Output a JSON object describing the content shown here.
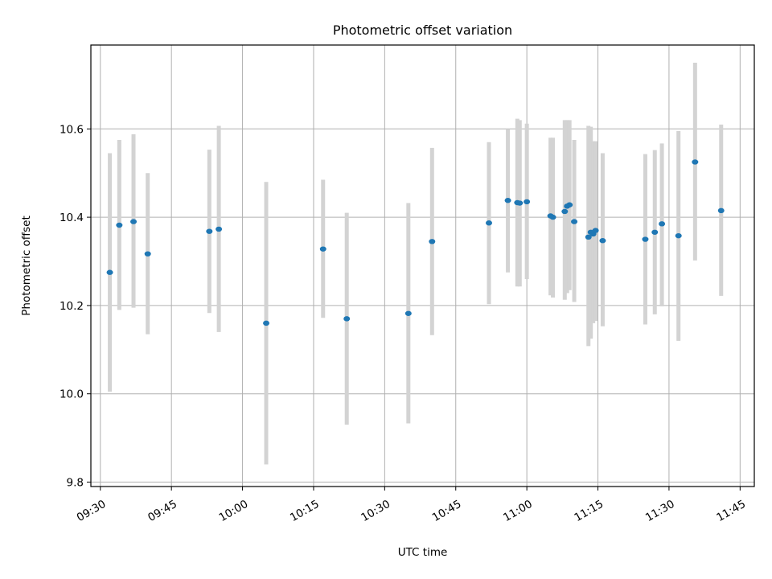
{
  "chart_data": {
    "type": "scatter",
    "title": "Photometric offset variation",
    "xlabel": "UTC time",
    "ylabel": "Photometric offset",
    "x_is_time": true,
    "xlim": [
      "09:28",
      "11:48"
    ],
    "ylim": [
      9.79,
      10.79
    ],
    "xticks": [
      "09:30",
      "09:45",
      "10:00",
      "10:15",
      "10:30",
      "10:45",
      "11:00",
      "11:15",
      "11:30",
      "11:45"
    ],
    "yticks": [
      9.8,
      10.0,
      10.2,
      10.4,
      10.6
    ],
    "ytick_labels": [
      "9.8",
      "10.0",
      "10.2",
      "10.4",
      "10.6"
    ],
    "grid": true,
    "colors": {
      "point": "#1f77b4",
      "errorbar": "#d3d3d3",
      "grid": "#b0b0b0"
    },
    "series": [
      {
        "points": [
          {
            "x": "09:32",
            "y": 10.275,
            "err_low": 10.005,
            "err_high": 10.545
          },
          {
            "x": "09:34",
            "y": 10.382,
            "err_low": 10.19,
            "err_high": 10.575
          },
          {
            "x": "09:37",
            "y": 10.39,
            "err_low": 10.195,
            "err_high": 10.588
          },
          {
            "x": "09:40",
            "y": 10.317,
            "err_low": 10.135,
            "err_high": 10.5
          },
          {
            "x": "09:53",
            "y": 10.368,
            "err_low": 10.183,
            "err_high": 10.553
          },
          {
            "x": "09:55",
            "y": 10.373,
            "err_low": 10.14,
            "err_high": 10.607
          },
          {
            "x": "10:05",
            "y": 10.16,
            "err_low": 9.84,
            "err_high": 10.48
          },
          {
            "x": "10:17",
            "y": 10.328,
            "err_low": 10.172,
            "err_high": 10.485
          },
          {
            "x": "10:22",
            "y": 10.17,
            "err_low": 9.93,
            "err_high": 10.41
          },
          {
            "x": "10:35",
            "y": 10.182,
            "err_low": 9.933,
            "err_high": 10.432
          },
          {
            "x": "10:40",
            "y": 10.345,
            "err_low": 10.133,
            "err_high": 10.557
          },
          {
            "x": "10:52",
            "y": 10.387,
            "err_low": 10.203,
            "err_high": 10.57
          },
          {
            "x": "10:56",
            "y": 10.438,
            "err_low": 10.275,
            "err_high": 10.6
          },
          {
            "x": "10:58",
            "y": 10.433,
            "err_low": 10.243,
            "err_high": 10.623
          },
          {
            "x": "10:58.5",
            "y": 10.432,
            "err_low": 10.243,
            "err_high": 10.62
          },
          {
            "x": "11:00",
            "y": 10.435,
            "err_low": 10.26,
            "err_high": 10.612
          },
          {
            "x": "11:05",
            "y": 10.403,
            "err_low": 10.223,
            "err_high": 10.58
          },
          {
            "x": "11:05.5",
            "y": 10.4,
            "err_low": 10.218,
            "err_high": 10.58
          },
          {
            "x": "11:08",
            "y": 10.413,
            "err_low": 10.213,
            "err_high": 10.62
          },
          {
            "x": "11:08.5",
            "y": 10.425,
            "err_low": 10.228,
            "err_high": 10.62
          },
          {
            "x": "11:09",
            "y": 10.428,
            "err_low": 10.235,
            "err_high": 10.62
          },
          {
            "x": "11:10",
            "y": 10.39,
            "err_low": 10.208,
            "err_high": 10.575
          },
          {
            "x": "11:13",
            "y": 10.355,
            "err_low": 10.108,
            "err_high": 10.607
          },
          {
            "x": "11:13.5",
            "y": 10.366,
            "err_low": 10.125,
            "err_high": 10.605
          },
          {
            "x": "11:14",
            "y": 10.362,
            "err_low": 10.16,
            "err_high": 10.572
          },
          {
            "x": "11:14.5",
            "y": 10.37,
            "err_low": 10.165,
            "err_high": 10.572
          },
          {
            "x": "11:16",
            "y": 10.347,
            "err_low": 10.153,
            "err_high": 10.545
          },
          {
            "x": "11:25",
            "y": 10.35,
            "err_low": 10.157,
            "err_high": 10.543
          },
          {
            "x": "11:27",
            "y": 10.366,
            "err_low": 10.18,
            "err_high": 10.552
          },
          {
            "x": "11:28.5",
            "y": 10.385,
            "err_low": 10.198,
            "err_high": 10.567
          },
          {
            "x": "11:32",
            "y": 10.358,
            "err_low": 10.12,
            "err_high": 10.595
          },
          {
            "x": "11:35.5",
            "y": 10.525,
            "err_low": 10.302,
            "err_high": 10.75
          },
          {
            "x": "11:41",
            "y": 10.415,
            "err_low": 10.222,
            "err_high": 10.61
          }
        ]
      }
    ]
  }
}
